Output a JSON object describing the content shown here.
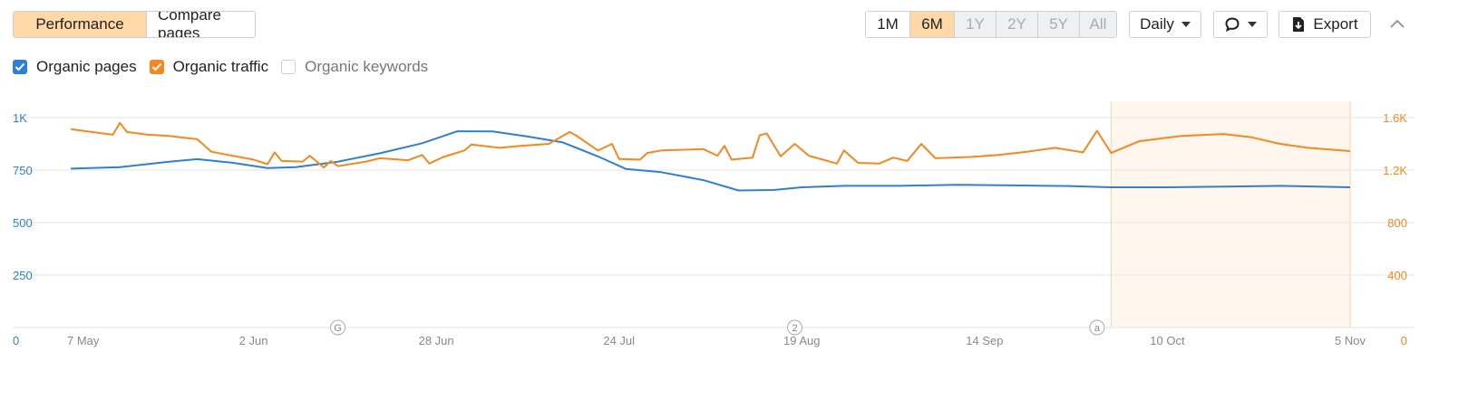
{
  "tabs": {
    "performance": "Performance",
    "compare": "Compare pages"
  },
  "ranges": [
    {
      "label": "1M",
      "state": "normal"
    },
    {
      "label": "6M",
      "state": "active"
    },
    {
      "label": "1Y",
      "state": "disabled"
    },
    {
      "label": "2Y",
      "state": "disabled"
    },
    {
      "label": "5Y",
      "state": "disabled"
    },
    {
      "label": "All",
      "state": "disabled"
    }
  ],
  "interval": "Daily",
  "export_label": "Export",
  "icons": {
    "annotation": "comment-icon",
    "export": "export-file-icon",
    "collapse": "chevron-up-icon"
  },
  "legend": [
    {
      "label": "Organic pages",
      "checked": true,
      "color": "#2f80d1"
    },
    {
      "label": "Organic traffic",
      "checked": true,
      "color": "#f5881f"
    },
    {
      "label": "Organic keywords",
      "checked": false,
      "color": "#bbbbbb"
    }
  ],
  "chart_data": {
    "type": "line",
    "x_ticks": [
      "7 May",
      "2 Jun",
      "28 Jun",
      "24 Jul",
      "19 Aug",
      "14 Sep",
      "10 Oct",
      "5 Nov"
    ],
    "x_range": [
      "2023-05-07",
      "2023-11-05"
    ],
    "y_left": {
      "ticks": [
        "0",
        "250",
        "500",
        "750",
        "1K"
      ],
      "range": [
        0,
        1000
      ],
      "color": "#2f80d1"
    },
    "y_right": {
      "ticks": [
        "0",
        "400",
        "800",
        "1.2K",
        "1.6K"
      ],
      "range": [
        0,
        1600
      ],
      "color": "#f5881f"
    },
    "grid": true,
    "highlight_range": [
      "2023-10-02",
      "2023-11-05"
    ],
    "annotations": [
      {
        "date": "2023-06-14",
        "label": "G"
      },
      {
        "date": "2023-08-18",
        "label": "2"
      },
      {
        "date": "2023-09-30",
        "label": "a"
      }
    ],
    "series": [
      {
        "name": "Organic pages",
        "axis": "left",
        "color": "#2f80d1",
        "points": [
          [
            "2023-05-07",
            757
          ],
          [
            "2023-05-14",
            764
          ],
          [
            "2023-05-21",
            790
          ],
          [
            "2023-05-25",
            802
          ],
          [
            "2023-05-30",
            785
          ],
          [
            "2023-06-04",
            760
          ],
          [
            "2023-06-08",
            764
          ],
          [
            "2023-06-14",
            790
          ],
          [
            "2023-06-20",
            830
          ],
          [
            "2023-06-26",
            878
          ],
          [
            "2023-07-01",
            935
          ],
          [
            "2023-07-06",
            934
          ],
          [
            "2023-07-11",
            910
          ],
          [
            "2023-07-16",
            882
          ],
          [
            "2023-07-21",
            815
          ],
          [
            "2023-07-25",
            755
          ],
          [
            "2023-07-30",
            740
          ],
          [
            "2023-08-05",
            702
          ],
          [
            "2023-08-10",
            653
          ],
          [
            "2023-08-15",
            655
          ],
          [
            "2023-08-19",
            668
          ],
          [
            "2023-08-25",
            675
          ],
          [
            "2023-09-02",
            675
          ],
          [
            "2023-09-10",
            680
          ],
          [
            "2023-09-18",
            677
          ],
          [
            "2023-09-26",
            674
          ],
          [
            "2023-10-02",
            668
          ],
          [
            "2023-10-10",
            668
          ],
          [
            "2023-10-18",
            671
          ],
          [
            "2023-10-26",
            675
          ],
          [
            "2023-11-05",
            668
          ]
        ]
      },
      {
        "name": "Organic traffic",
        "axis": "right",
        "color": "#f5881f",
        "points": [
          [
            "2023-05-07",
            1512
          ],
          [
            "2023-05-10",
            1490
          ],
          [
            "2023-05-13",
            1470
          ],
          [
            "2023-05-14",
            1560
          ],
          [
            "2023-05-15",
            1490
          ],
          [
            "2023-05-18",
            1470
          ],
          [
            "2023-05-21",
            1460
          ],
          [
            "2023-05-25",
            1435
          ],
          [
            "2023-05-27",
            1340
          ],
          [
            "2023-05-30",
            1310
          ],
          [
            "2023-06-02",
            1280
          ],
          [
            "2023-06-04",
            1245
          ],
          [
            "2023-06-05",
            1335
          ],
          [
            "2023-06-06",
            1270
          ],
          [
            "2023-06-09",
            1265
          ],
          [
            "2023-06-10",
            1310
          ],
          [
            "2023-06-12",
            1220
          ],
          [
            "2023-06-13",
            1270
          ],
          [
            "2023-06-14",
            1230
          ],
          [
            "2023-06-18",
            1265
          ],
          [
            "2023-06-20",
            1290
          ],
          [
            "2023-06-24",
            1275
          ],
          [
            "2023-06-26",
            1315
          ],
          [
            "2023-06-27",
            1250
          ],
          [
            "2023-06-29",
            1300
          ],
          [
            "2023-07-02",
            1350
          ],
          [
            "2023-07-03",
            1395
          ],
          [
            "2023-07-07",
            1370
          ],
          [
            "2023-07-10",
            1385
          ],
          [
            "2023-07-14",
            1400
          ],
          [
            "2023-07-17",
            1490
          ],
          [
            "2023-07-18",
            1460
          ],
          [
            "2023-07-21",
            1350
          ],
          [
            "2023-07-23",
            1400
          ],
          [
            "2023-07-24",
            1285
          ],
          [
            "2023-07-27",
            1280
          ],
          [
            "2023-07-28",
            1330
          ],
          [
            "2023-07-30",
            1350
          ],
          [
            "2023-08-05",
            1360
          ],
          [
            "2023-08-07",
            1310
          ],
          [
            "2023-08-08",
            1385
          ],
          [
            "2023-08-09",
            1280
          ],
          [
            "2023-08-12",
            1295
          ],
          [
            "2023-08-13",
            1465
          ],
          [
            "2023-08-14",
            1480
          ],
          [
            "2023-08-16",
            1305
          ],
          [
            "2023-08-18",
            1400
          ],
          [
            "2023-08-20",
            1310
          ],
          [
            "2023-08-24",
            1250
          ],
          [
            "2023-08-25",
            1350
          ],
          [
            "2023-08-27",
            1255
          ],
          [
            "2023-08-30",
            1250
          ],
          [
            "2023-09-01",
            1295
          ],
          [
            "2023-09-03",
            1270
          ],
          [
            "2023-09-05",
            1400
          ],
          [
            "2023-09-07",
            1290
          ],
          [
            "2023-09-12",
            1300
          ],
          [
            "2023-09-16",
            1315
          ],
          [
            "2023-09-20",
            1340
          ],
          [
            "2023-09-24",
            1370
          ],
          [
            "2023-09-28",
            1335
          ],
          [
            "2023-09-30",
            1500
          ],
          [
            "2023-10-02",
            1330
          ],
          [
            "2023-10-06",
            1420
          ],
          [
            "2023-10-12",
            1460
          ],
          [
            "2023-10-18",
            1475
          ],
          [
            "2023-10-22",
            1450
          ],
          [
            "2023-10-26",
            1400
          ],
          [
            "2023-10-30",
            1370
          ],
          [
            "2023-11-05",
            1345
          ]
        ]
      }
    ]
  }
}
